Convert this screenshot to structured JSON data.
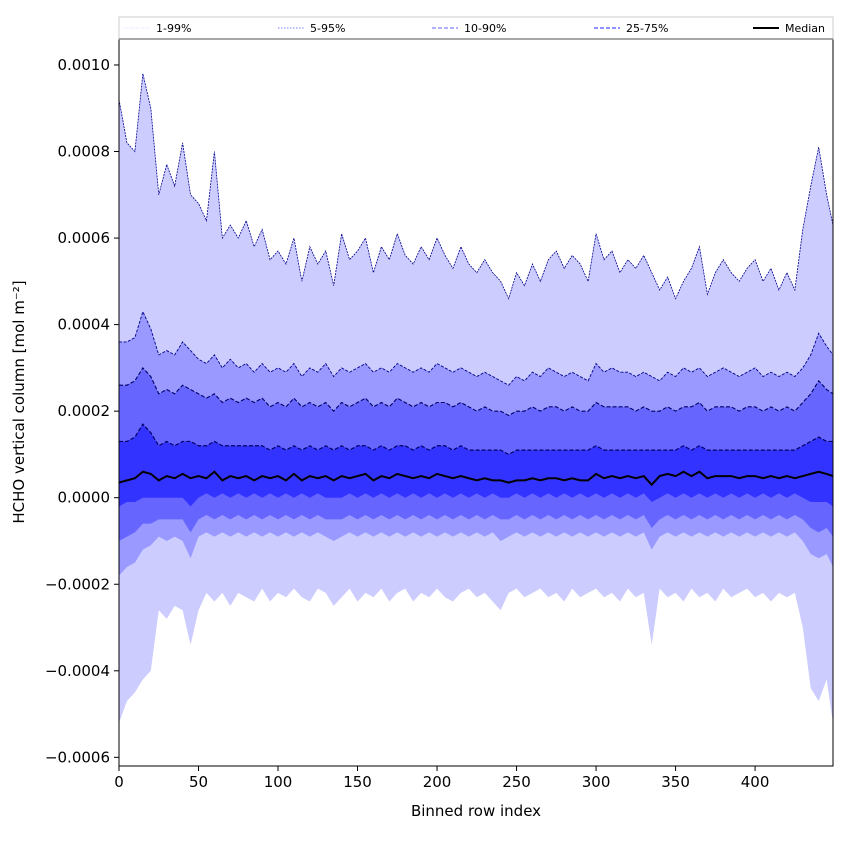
{
  "chart_data": {
    "type": "area",
    "title": "",
    "xlabel": "Binned row index",
    "ylabel": "HCHO vertical column [mol m⁻²]",
    "xlim": [
      0,
      449
    ],
    "ylim": [
      -0.00062,
      0.00106
    ],
    "xticks": [
      0,
      50,
      100,
      150,
      200,
      250,
      300,
      350,
      400
    ],
    "xtick_labels": [
      "0",
      "50",
      "100",
      "150",
      "200",
      "250",
      "300",
      "350",
      "400"
    ],
    "yticks": [
      -0.0006,
      -0.0004,
      -0.0002,
      0.0,
      0.0002,
      0.0004,
      0.0006,
      0.0008,
      0.001
    ],
    "ytick_labels": [
      "−0.0006",
      "−0.0004",
      "−0.0002",
      "0.0000",
      "0.0002",
      "0.0004",
      "0.0006",
      "0.0008",
      "0.0010"
    ],
    "grid": false,
    "legend": {
      "position": "top, above plot",
      "entries": [
        {
          "label": "1-99%",
          "color": "#e6e6ff",
          "style": "dotted"
        },
        {
          "label": "5-95%",
          "color": "#9999ff",
          "style": "dotted"
        },
        {
          "label": "10-90%",
          "color": "#8080ff",
          "style": "dashed"
        },
        {
          "label": "25-75%",
          "color": "#5050ff",
          "style": "dashed"
        },
        {
          "label": "Median",
          "color": "#000000",
          "style": "solid"
        }
      ]
    },
    "band_colors": {
      "p1_99": "#ccccff",
      "p5_95": "#9999ff",
      "p10_90": "#6666ff",
      "p25_75": "#3333ff",
      "edge_outer": "#00008b",
      "edge_inner": "#000066",
      "median": "#000000"
    },
    "x": [
      0,
      5,
      10,
      15,
      20,
      25,
      30,
      35,
      40,
      45,
      50,
      55,
      60,
      65,
      70,
      75,
      80,
      85,
      90,
      95,
      100,
      105,
      110,
      115,
      120,
      125,
      130,
      135,
      140,
      145,
      150,
      155,
      160,
      165,
      170,
      175,
      180,
      185,
      190,
      195,
      200,
      205,
      210,
      215,
      220,
      225,
      230,
      235,
      240,
      245,
      250,
      255,
      260,
      265,
      270,
      275,
      280,
      285,
      290,
      295,
      300,
      305,
      310,
      315,
      320,
      325,
      330,
      335,
      340,
      345,
      350,
      355,
      360,
      365,
      370,
      375,
      380,
      385,
      390,
      395,
      400,
      405,
      410,
      415,
      420,
      425,
      430,
      435,
      440,
      445,
      449
    ],
    "series": [
      {
        "name": "1-99%",
        "band": "p1_99",
        "upper": [
          0.00092,
          0.00082,
          0.0008,
          0.00098,
          0.0009,
          0.0007,
          0.00077,
          0.00072,
          0.00082,
          0.0007,
          0.00068,
          0.00064,
          0.0008,
          0.0006,
          0.00063,
          0.0006,
          0.00064,
          0.00058,
          0.00062,
          0.00055,
          0.00057,
          0.00054,
          0.0006,
          0.0005,
          0.00058,
          0.00054,
          0.00057,
          0.00049,
          0.00061,
          0.00055,
          0.00057,
          0.0006,
          0.00052,
          0.00058,
          0.00055,
          0.00061,
          0.00056,
          0.00054,
          0.00058,
          0.00055,
          0.0006,
          0.00056,
          0.00053,
          0.00058,
          0.00054,
          0.00052,
          0.00055,
          0.00052,
          0.0005,
          0.00046,
          0.00052,
          0.00049,
          0.00054,
          0.0005,
          0.00055,
          0.00057,
          0.00053,
          0.00056,
          0.00054,
          0.0005,
          0.00061,
          0.00055,
          0.00057,
          0.00052,
          0.00055,
          0.00053,
          0.00056,
          0.00052,
          0.00048,
          0.00051,
          0.00046,
          0.0005,
          0.00053,
          0.00058,
          0.00047,
          0.00052,
          0.00055,
          0.00052,
          0.0005,
          0.00053,
          0.00055,
          0.0005,
          0.00053,
          0.00048,
          0.00052,
          0.00048,
          0.00062,
          0.00072,
          0.00081,
          0.0007,
          0.00063
        ],
        "lower": [
          -0.00052,
          -0.00047,
          -0.00045,
          -0.00042,
          -0.0004,
          -0.00026,
          -0.00028,
          -0.00025,
          -0.00026,
          -0.00034,
          -0.00026,
          -0.00022,
          -0.00024,
          -0.00022,
          -0.00025,
          -0.00022,
          -0.00023,
          -0.00024,
          -0.00021,
          -0.00024,
          -0.00022,
          -0.00023,
          -0.00021,
          -0.00023,
          -0.00024,
          -0.00021,
          -0.00022,
          -0.00025,
          -0.00023,
          -0.00021,
          -0.00024,
          -0.00022,
          -0.00023,
          -0.00021,
          -0.00024,
          -0.00022,
          -0.00021,
          -0.00024,
          -0.00022,
          -0.00023,
          -0.00021,
          -0.00023,
          -0.00024,
          -0.00022,
          -0.00021,
          -0.00023,
          -0.00022,
          -0.00024,
          -0.00026,
          -0.00022,
          -0.00021,
          -0.00023,
          -0.00022,
          -0.00021,
          -0.00023,
          -0.00022,
          -0.00024,
          -0.00021,
          -0.00023,
          -0.00022,
          -0.00021,
          -0.00023,
          -0.00022,
          -0.00024,
          -0.00021,
          -0.00023,
          -0.00022,
          -0.00034,
          -0.00021,
          -0.00023,
          -0.00022,
          -0.00024,
          -0.00021,
          -0.00023,
          -0.00022,
          -0.00024,
          -0.00021,
          -0.00023,
          -0.00022,
          -0.00021,
          -0.00023,
          -0.00022,
          -0.00024,
          -0.00022,
          -0.00023,
          -0.00022,
          -0.0003,
          -0.00044,
          -0.00047,
          -0.00042,
          -0.00052
        ]
      },
      {
        "name": "5-95%",
        "band": "p5_95",
        "upper": [
          0.00036,
          0.00036,
          0.00037,
          0.00043,
          0.00039,
          0.00033,
          0.00034,
          0.00033,
          0.00036,
          0.00034,
          0.00032,
          0.00031,
          0.00033,
          0.0003,
          0.00032,
          0.0003,
          0.00031,
          0.00029,
          0.00031,
          0.00029,
          0.0003,
          0.00029,
          0.00031,
          0.00028,
          0.0003,
          0.00029,
          0.00031,
          0.00028,
          0.0003,
          0.00029,
          0.0003,
          0.00031,
          0.00029,
          0.0003,
          0.00029,
          0.00031,
          0.0003,
          0.00029,
          0.0003,
          0.00029,
          0.00031,
          0.0003,
          0.00029,
          0.0003,
          0.00029,
          0.00028,
          0.00029,
          0.00028,
          0.00027,
          0.00026,
          0.00028,
          0.00027,
          0.00029,
          0.00028,
          0.0003,
          0.00029,
          0.00028,
          0.00029,
          0.00028,
          0.00027,
          0.00031,
          0.00029,
          0.0003,
          0.00029,
          0.00029,
          0.00028,
          0.00029,
          0.00028,
          0.00027,
          0.00029,
          0.00028,
          0.0003,
          0.00029,
          0.0003,
          0.00028,
          0.00029,
          0.0003,
          0.00029,
          0.00028,
          0.00029,
          0.0003,
          0.00028,
          0.00029,
          0.00028,
          0.00029,
          0.00028,
          0.0003,
          0.00033,
          0.00038,
          0.00035,
          0.00033
        ],
        "lower": [
          -0.00018,
          -0.00016,
          -0.00015,
          -0.00012,
          -0.00011,
          -9e-05,
          -0.0001,
          -9e-05,
          -0.0001,
          -0.00014,
          -9e-05,
          -8e-05,
          -9e-05,
          -8e-05,
          -9e-05,
          -8e-05,
          -9e-05,
          -8e-05,
          -9e-05,
          -8e-05,
          -9e-05,
          -8e-05,
          -9e-05,
          -8e-05,
          -9e-05,
          -8e-05,
          -9e-05,
          -0.0001,
          -9e-05,
          -8e-05,
          -9e-05,
          -8e-05,
          -9e-05,
          -8e-05,
          -9e-05,
          -8e-05,
          -9e-05,
          -8e-05,
          -9e-05,
          -8e-05,
          -9e-05,
          -8e-05,
          -9e-05,
          -8e-05,
          -9e-05,
          -8e-05,
          -9e-05,
          -8e-05,
          -0.0001,
          -9e-05,
          -8e-05,
          -9e-05,
          -8e-05,
          -9e-05,
          -8e-05,
          -9e-05,
          -8e-05,
          -9e-05,
          -8e-05,
          -9e-05,
          -8e-05,
          -9e-05,
          -8e-05,
          -9e-05,
          -8e-05,
          -9e-05,
          -8e-05,
          -0.00012,
          -9e-05,
          -8e-05,
          -9e-05,
          -8e-05,
          -9e-05,
          -8e-05,
          -9e-05,
          -8e-05,
          -9e-05,
          -8e-05,
          -9e-05,
          -8e-05,
          -9e-05,
          -8e-05,
          -9e-05,
          -8e-05,
          -9e-05,
          -8e-05,
          -0.0001,
          -0.00013,
          -0.00014,
          -0.00013,
          -0.00016
        ]
      },
      {
        "name": "10-90%",
        "band": "p10_90",
        "upper": [
          0.00026,
          0.00026,
          0.00027,
          0.0003,
          0.00028,
          0.00024,
          0.00025,
          0.00024,
          0.00026,
          0.00025,
          0.00024,
          0.00023,
          0.00024,
          0.00022,
          0.00023,
          0.00022,
          0.00023,
          0.00022,
          0.00023,
          0.00021,
          0.00022,
          0.00021,
          0.00023,
          0.00021,
          0.00022,
          0.00021,
          0.00022,
          0.0002,
          0.00022,
          0.00021,
          0.00022,
          0.00023,
          0.00021,
          0.00022,
          0.00021,
          0.00023,
          0.00022,
          0.00021,
          0.00022,
          0.00021,
          0.00022,
          0.00022,
          0.00021,
          0.00022,
          0.00021,
          0.0002,
          0.00021,
          0.0002,
          0.0002,
          0.00019,
          0.0002,
          0.0002,
          0.00021,
          0.0002,
          0.00021,
          0.00021,
          0.0002,
          0.00021,
          0.0002,
          0.0002,
          0.00022,
          0.00021,
          0.00021,
          0.00021,
          0.00021,
          0.0002,
          0.00021,
          0.0002,
          0.0002,
          0.00021,
          0.0002,
          0.00021,
          0.00021,
          0.00022,
          0.0002,
          0.00021,
          0.00021,
          0.00021,
          0.0002,
          0.00021,
          0.00021,
          0.0002,
          0.00021,
          0.0002,
          0.00021,
          0.0002,
          0.00022,
          0.00024,
          0.00027,
          0.00025,
          0.00024
        ],
        "lower": [
          -0.0001,
          -9e-05,
          -8e-05,
          -6e-05,
          -6e-05,
          -5e-05,
          -5e-05,
          -5e-05,
          -5e-05,
          -8e-05,
          -5e-05,
          -4e-05,
          -5e-05,
          -4e-05,
          -5e-05,
          -4e-05,
          -5e-05,
          -4e-05,
          -5e-05,
          -4e-05,
          -5e-05,
          -4e-05,
          -5e-05,
          -4e-05,
          -5e-05,
          -4e-05,
          -5e-05,
          -5e-05,
          -5e-05,
          -4e-05,
          -5e-05,
          -4e-05,
          -5e-05,
          -4e-05,
          -5e-05,
          -4e-05,
          -5e-05,
          -4e-05,
          -5e-05,
          -4e-05,
          -5e-05,
          -4e-05,
          -5e-05,
          -4e-05,
          -5e-05,
          -4e-05,
          -5e-05,
          -4e-05,
          -5e-05,
          -5e-05,
          -4e-05,
          -5e-05,
          -4e-05,
          -5e-05,
          -4e-05,
          -5e-05,
          -4e-05,
          -5e-05,
          -4e-05,
          -5e-05,
          -4e-05,
          -5e-05,
          -4e-05,
          -5e-05,
          -4e-05,
          -5e-05,
          -4e-05,
          -7e-05,
          -5e-05,
          -4e-05,
          -5e-05,
          -4e-05,
          -5e-05,
          -4e-05,
          -5e-05,
          -4e-05,
          -5e-05,
          -4e-05,
          -5e-05,
          -4e-05,
          -5e-05,
          -4e-05,
          -5e-05,
          -4e-05,
          -5e-05,
          -4e-05,
          -5e-05,
          -7e-05,
          -8e-05,
          -7e-05,
          -9e-05
        ]
      },
      {
        "name": "25-75%",
        "band": "p25_75",
        "upper": [
          0.00013,
          0.00013,
          0.00014,
          0.00017,
          0.00015,
          0.00012,
          0.00013,
          0.00012,
          0.00013,
          0.00013,
          0.00012,
          0.00012,
          0.00013,
          0.00012,
          0.00012,
          0.00012,
          0.00012,
          0.00012,
          0.00012,
          0.00011,
          0.00012,
          0.00011,
          0.00012,
          0.00011,
          0.00012,
          0.00011,
          0.00012,
          0.00011,
          0.00012,
          0.00011,
          0.00012,
          0.00012,
          0.00011,
          0.00012,
          0.00011,
          0.00012,
          0.00012,
          0.00011,
          0.00012,
          0.00011,
          0.00012,
          0.00012,
          0.00011,
          0.00012,
          0.00011,
          0.00011,
          0.00011,
          0.00011,
          0.00011,
          0.0001,
          0.00011,
          0.00011,
          0.00011,
          0.00011,
          0.00011,
          0.00011,
          0.00011,
          0.00011,
          0.00011,
          0.00011,
          0.00012,
          0.00011,
          0.00011,
          0.00011,
          0.00011,
          0.00011,
          0.00011,
          0.00011,
          0.00011,
          0.00011,
          0.00011,
          0.00012,
          0.00011,
          0.00012,
          0.00011,
          0.00011,
          0.00011,
          0.00011,
          0.00011,
          0.00011,
          0.00011,
          0.00011,
          0.00011,
          0.00011,
          0.00011,
          0.00011,
          0.00012,
          0.00013,
          0.00014,
          0.00013,
          0.00013
        ],
        "lower": [
          -2e-05,
          -1e-05,
          -1e-05,
          0.0,
          0.0,
          0.0,
          0.0,
          0.0,
          0.0,
          -2e-05,
          0.0,
          1e-05,
          0.0,
          1e-05,
          0.0,
          1e-05,
          0.0,
          1e-05,
          0.0,
          1e-05,
          0.0,
          1e-05,
          0.0,
          1e-05,
          0.0,
          1e-05,
          0.0,
          0.0,
          0.0,
          1e-05,
          0.0,
          1e-05,
          0.0,
          1e-05,
          0.0,
          1e-05,
          0.0,
          1e-05,
          0.0,
          1e-05,
          0.0,
          1e-05,
          0.0,
          1e-05,
          0.0,
          1e-05,
          0.0,
          1e-05,
          0.0,
          0.0,
          1e-05,
          0.0,
          1e-05,
          0.0,
          1e-05,
          0.0,
          1e-05,
          0.0,
          1e-05,
          0.0,
          1e-05,
          0.0,
          1e-05,
          0.0,
          1e-05,
          0.0,
          1e-05,
          -1e-05,
          0.0,
          1e-05,
          0.0,
          1e-05,
          0.0,
          1e-05,
          0.0,
          1e-05,
          0.0,
          1e-05,
          0.0,
          1e-05,
          0.0,
          1e-05,
          0.0,
          1e-05,
          0.0,
          1e-05,
          0.0,
          -1e-05,
          -1e-05,
          -1e-05,
          -2e-05
        ]
      },
      {
        "name": "Median",
        "band": "median",
        "values": [
          3.5e-05,
          4e-05,
          4.5e-05,
          6e-05,
          5.5e-05,
          4e-05,
          5e-05,
          4.5e-05,
          5.5e-05,
          4.5e-05,
          5e-05,
          4.5e-05,
          6e-05,
          4e-05,
          5e-05,
          4.5e-05,
          5e-05,
          4e-05,
          5e-05,
          4.5e-05,
          5e-05,
          4e-05,
          5.5e-05,
          4e-05,
          5e-05,
          4.5e-05,
          5e-05,
          4e-05,
          5e-05,
          4.5e-05,
          5e-05,
          5.5e-05,
          4e-05,
          5e-05,
          4.5e-05,
          5.5e-05,
          5e-05,
          4.5e-05,
          5e-05,
          4.5e-05,
          5.5e-05,
          5e-05,
          4.5e-05,
          5e-05,
          4.5e-05,
          4e-05,
          4.5e-05,
          4e-05,
          4e-05,
          3.5e-05,
          4e-05,
          4e-05,
          4.5e-05,
          4e-05,
          4.5e-05,
          4.5e-05,
          4e-05,
          4.5e-05,
          4e-05,
          4e-05,
          5.5e-05,
          4.5e-05,
          5e-05,
          4.5e-05,
          5e-05,
          4.5e-05,
          5e-05,
          3e-05,
          5e-05,
          5.5e-05,
          5e-05,
          6e-05,
          5e-05,
          6e-05,
          4.5e-05,
          5e-05,
          5e-05,
          5e-05,
          4.5e-05,
          5e-05,
          5e-05,
          4.5e-05,
          5e-05,
          4.5e-05,
          5e-05,
          4.5e-05,
          5e-05,
          5.5e-05,
          6e-05,
          5.5e-05,
          5e-05
        ]
      }
    ]
  }
}
